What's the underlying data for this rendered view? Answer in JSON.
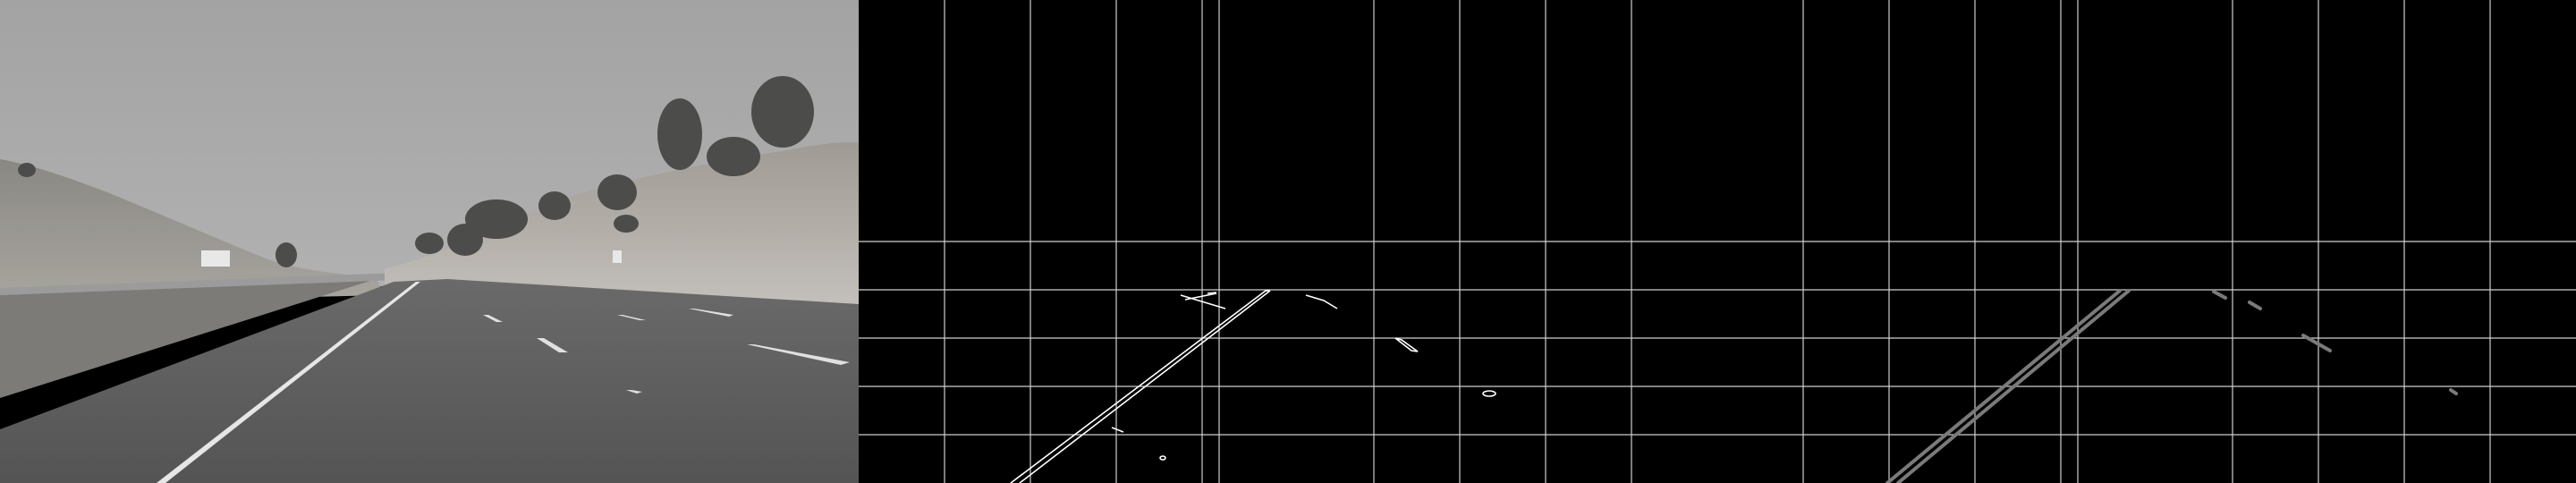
{
  "panels": [
    {
      "id": "grayscale",
      "kind": "photo"
    },
    {
      "id": "edges",
      "kind": "canny"
    },
    {
      "id": "hough",
      "kind": "lines"
    }
  ],
  "colors": {
    "background": "#000000",
    "grid": "#d8d8d8",
    "edge": "#ffffff",
    "hough_line": "#7a7a7a",
    "sky": "#a9a9a9",
    "road": "#595959"
  }
}
